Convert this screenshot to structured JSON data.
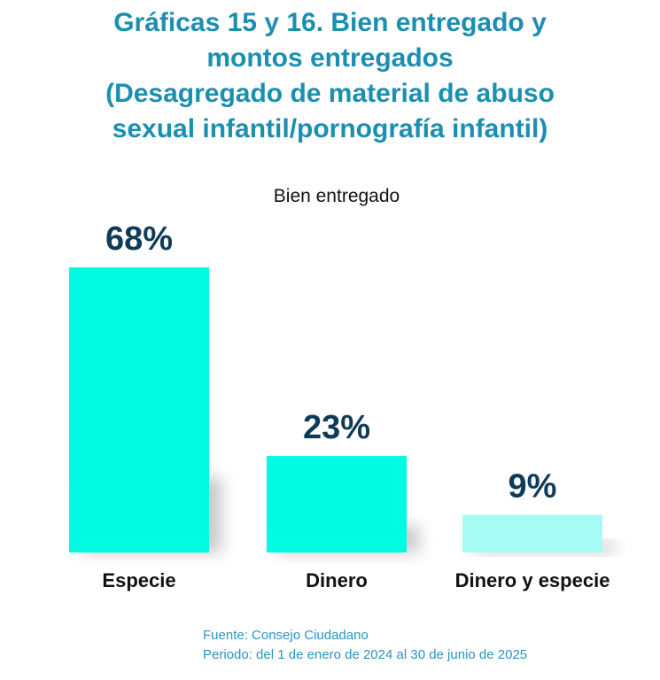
{
  "title_lines": [
    "Gráficas 15 y 16. Bien entregado y",
    "montos entregados",
    "(Desagregado de material de abuso",
    "sexual infantil/pornografía infantil)"
  ],
  "colors": {
    "title": "#1b8fb0",
    "bar_main": "#00fbe3",
    "bar_light": "#a6fcf4",
    "value_label": "#0e3c58",
    "source": "#2a94c2"
  },
  "chart_data": {
    "type": "bar",
    "title": "Bien entregado",
    "categories": [
      "Especie",
      "Dinero",
      "Dinero y especie"
    ],
    "values": [
      68,
      23,
      9
    ],
    "labels": [
      "68%",
      "23%",
      "9%"
    ],
    "unit": "%",
    "ylim": [
      0,
      68
    ],
    "grid": false,
    "legend": false
  },
  "source": {
    "line1": "Fuente: Consejo Ciudadano",
    "line2": "Periodo: del 1 de enero de 2024 al 30 de junio de 2025"
  }
}
